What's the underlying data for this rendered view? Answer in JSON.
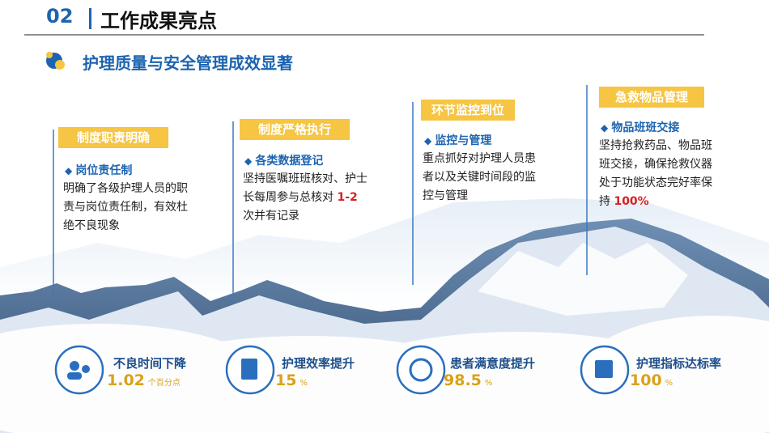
{
  "header": {
    "number": "02",
    "title": "工作成果亮点"
  },
  "subtitle": "护理质量与安全管理成效显著",
  "milestones": [
    {
      "tag": "制度职责明确",
      "heading": "岗位责任制",
      "body": "明确了各级护理人员的职责与岗位责任制，有效杜绝不良现象"
    },
    {
      "tag": "制度严格执行",
      "heading": "各类数据登记",
      "body": "坚持医嘱班班核对、护士长每周参与总核对 ",
      "highlight": "1-2",
      "body_after": " 次并有记录"
    },
    {
      "tag": "环节监控到位",
      "heading": "监控与管理",
      "body": "重点抓好对护理人员患者以及关键时间段的监控与管理"
    },
    {
      "tag": "急救物品管理",
      "heading": "物品班班交接",
      "body": "坚持抢救药品、物品班班交接，确保抢救仪器处于功能状态完好率保持 ",
      "highlight": "100%"
    }
  ],
  "stats": [
    {
      "label": "不良时间下降",
      "value": "1.02",
      "unit": "个百分点"
    },
    {
      "label": "护理效率提升",
      "value": "15",
      "unit": "%"
    },
    {
      "label": "患者满意度提升",
      "value": "98.5",
      "unit": "%"
    },
    {
      "label": "护理指标达标率",
      "value": "100",
      "unit": "%"
    }
  ]
}
